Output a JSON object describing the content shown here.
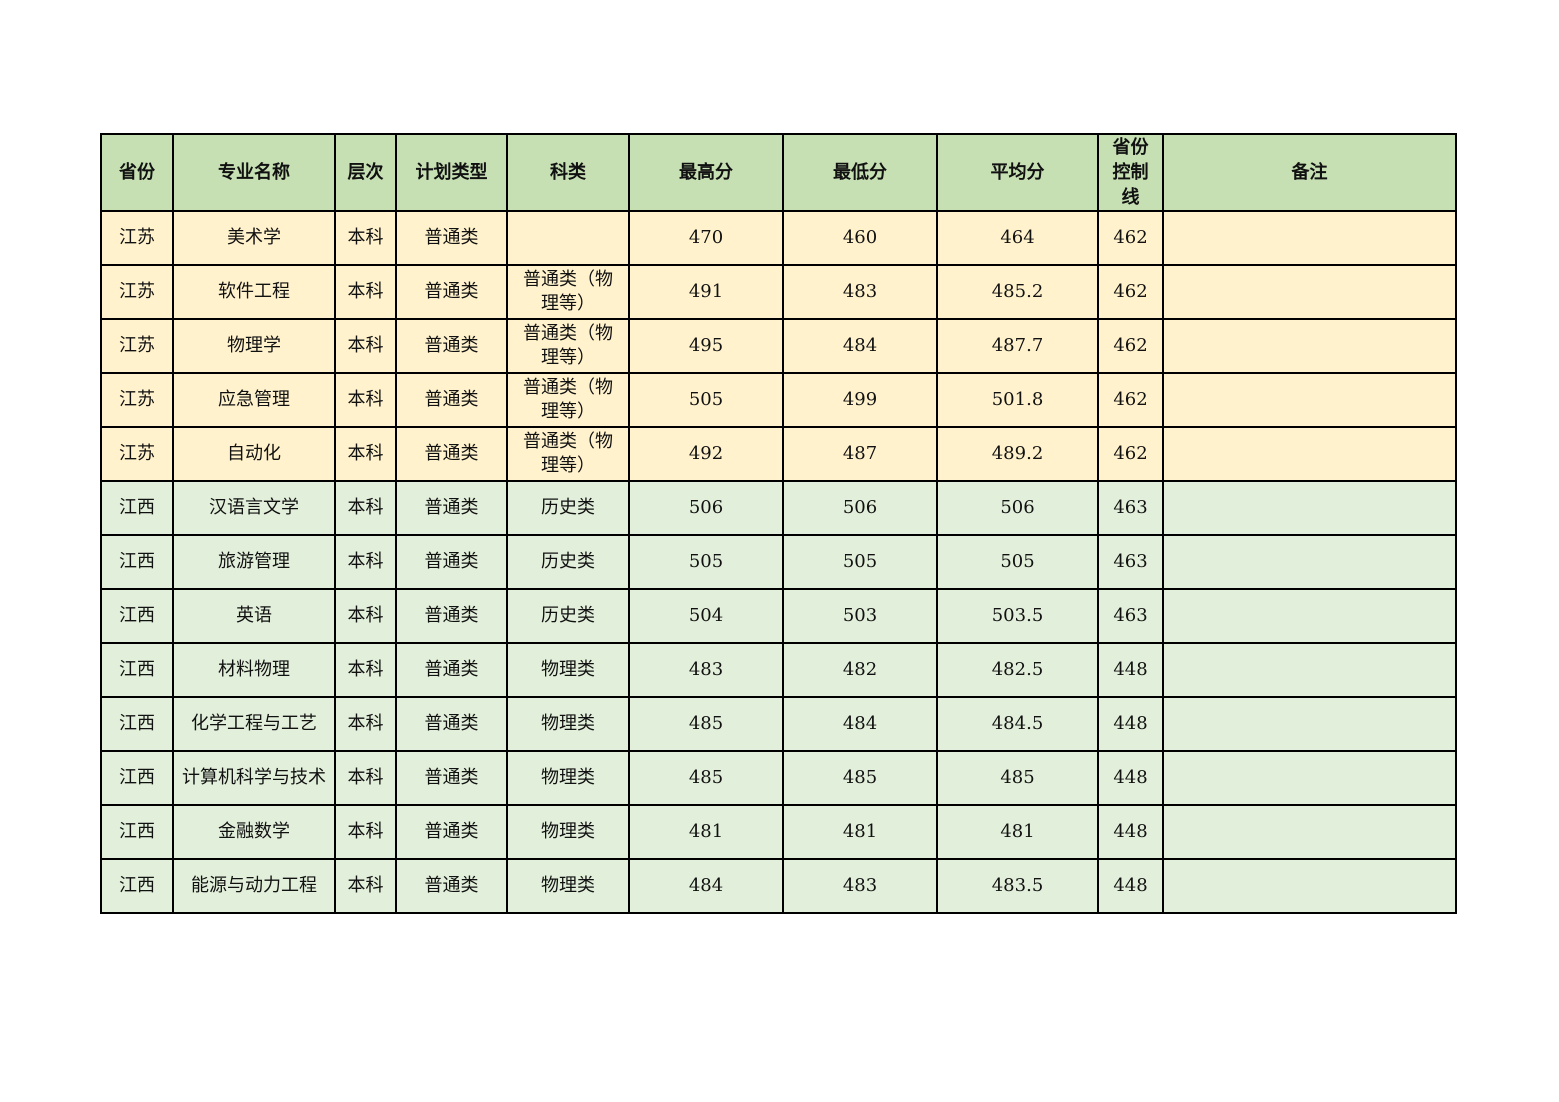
{
  "colors": {
    "header": "#c6e0b4",
    "jiangsu_rows": "#fff2cc",
    "jiangxi_rows": "#e2efda"
  },
  "headers": [
    "省份",
    "专业名称",
    "层次",
    "计划类型",
    "科类",
    "最高分",
    "最低分",
    "平均分",
    "省份控制线",
    "备注"
  ],
  "rows": [
    [
      "江苏",
      "美术学",
      "本科",
      "普通类",
      "",
      "470",
      "460",
      "464",
      "462",
      ""
    ],
    [
      "江苏",
      "软件工程",
      "本科",
      "普通类",
      "普通类（物理等）",
      "491",
      "483",
      "485.2",
      "462",
      ""
    ],
    [
      "江苏",
      "物理学",
      "本科",
      "普通类",
      "普通类（物理等）",
      "495",
      "484",
      "487.7",
      "462",
      ""
    ],
    [
      "江苏",
      "应急管理",
      "本科",
      "普通类",
      "普通类（物理等）",
      "505",
      "499",
      "501.8",
      "462",
      ""
    ],
    [
      "江苏",
      "自动化",
      "本科",
      "普通类",
      "普通类（物理等）",
      "492",
      "487",
      "489.2",
      "462",
      ""
    ],
    [
      "江西",
      "汉语言文学",
      "本科",
      "普通类",
      "历史类",
      "506",
      "506",
      "506",
      "463",
      ""
    ],
    [
      "江西",
      "旅游管理",
      "本科",
      "普通类",
      "历史类",
      "505",
      "505",
      "505",
      "463",
      ""
    ],
    [
      "江西",
      "英语",
      "本科",
      "普通类",
      "历史类",
      "504",
      "503",
      "503.5",
      "463",
      ""
    ],
    [
      "江西",
      "材料物理",
      "本科",
      "普通类",
      "物理类",
      "483",
      "482",
      "482.5",
      "448",
      ""
    ],
    [
      "江西",
      "化学工程与工艺",
      "本科",
      "普通类",
      "物理类",
      "485",
      "484",
      "484.5",
      "448",
      ""
    ],
    [
      "江西",
      "计算机科学与技术",
      "本科",
      "普通类",
      "物理类",
      "485",
      "485",
      "485",
      "448",
      ""
    ],
    [
      "江西",
      "金融数学",
      "本科",
      "普通类",
      "物理类",
      "481",
      "481",
      "481",
      "448",
      ""
    ],
    [
      "江西",
      "能源与动力工程",
      "本科",
      "普通类",
      "物理类",
      "484",
      "483",
      "483.5",
      "448",
      ""
    ]
  ]
}
